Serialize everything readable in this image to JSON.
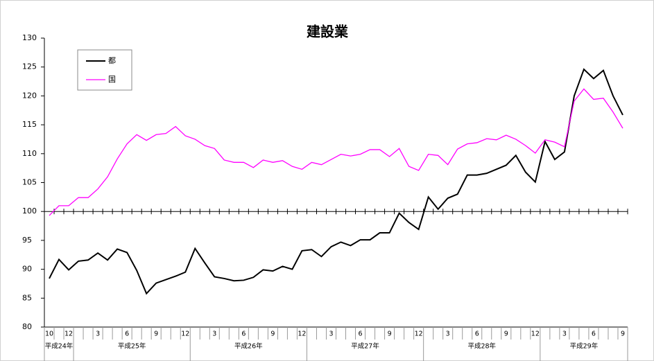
{
  "chart_data": {
    "type": "line",
    "title": "建設業",
    "categories": [
      "10",
      null,
      "12",
      null,
      null,
      "3",
      null,
      null,
      "6",
      null,
      null,
      "9",
      null,
      null,
      "12",
      null,
      null,
      "3",
      null,
      null,
      "6",
      null,
      null,
      "9",
      null,
      null,
      "12",
      null,
      null,
      "3",
      null,
      null,
      "6",
      null,
      null,
      "9",
      null,
      null,
      "12",
      null,
      null,
      "3",
      null,
      null,
      "6",
      null,
      null,
      "9",
      null,
      null,
      "12",
      null,
      null,
      "3",
      null,
      null,
      "6",
      null,
      null,
      "9"
    ],
    "year_labels": [
      "平成24年",
      "平成25年",
      "平成26年",
      "平成27年",
      "平成28年",
      "平成29年"
    ],
    "series": [
      {
        "name": "都",
        "color": "#000000",
        "values": [
          88.4,
          91.7,
          89.9,
          91.4,
          91.6,
          92.8,
          91.6,
          93.5,
          92.9,
          89.8,
          85.8,
          87.6,
          88.2,
          88.8,
          89.5,
          93.6,
          91.1,
          88.7,
          88.4,
          88.0,
          88.1,
          88.6,
          89.9,
          89.7,
          90.5,
          90.0,
          93.2,
          93.4,
          92.2,
          93.9,
          94.7,
          94.1,
          95.1,
          95.1,
          96.3,
          96.3,
          99.7,
          98.1,
          96.9,
          102.5,
          100.4,
          102.3,
          103.0,
          106.3,
          106.3,
          106.6,
          107.3,
          108.0,
          109.7,
          106.8,
          105.1,
          112.1,
          109.0,
          110.3,
          120.0,
          124.6,
          123.0,
          124.4,
          120.0,
          116.7
        ]
      },
      {
        "name": "国",
        "color": "#ff00ff",
        "values": [
          99.3,
          101.0,
          101.0,
          102.4,
          102.4,
          103.9,
          106.0,
          109.1,
          111.7,
          113.3,
          112.3,
          113.3,
          113.5,
          114.7,
          113.1,
          112.5,
          111.4,
          110.9,
          108.9,
          108.5,
          108.5,
          107.6,
          108.9,
          108.5,
          108.8,
          107.8,
          107.3,
          108.5,
          108.1,
          109.0,
          109.9,
          109.6,
          109.9,
          110.7,
          110.7,
          109.5,
          110.9,
          107.8,
          107.1,
          109.9,
          109.7,
          108.1,
          110.8,
          111.7,
          111.9,
          112.6,
          112.4,
          113.2,
          112.5,
          111.4,
          110.1,
          112.4,
          112.0,
          111.2,
          119.1,
          121.2,
          119.4,
          119.6,
          117.2,
          114.4
        ]
      }
    ],
    "ylim": [
      80,
      130
    ],
    "yticks": [
      80,
      85,
      90,
      95,
      100,
      105,
      110,
      115,
      120,
      125,
      130
    ],
    "x_axis_crosses": 100,
    "legend": "upper-left"
  }
}
